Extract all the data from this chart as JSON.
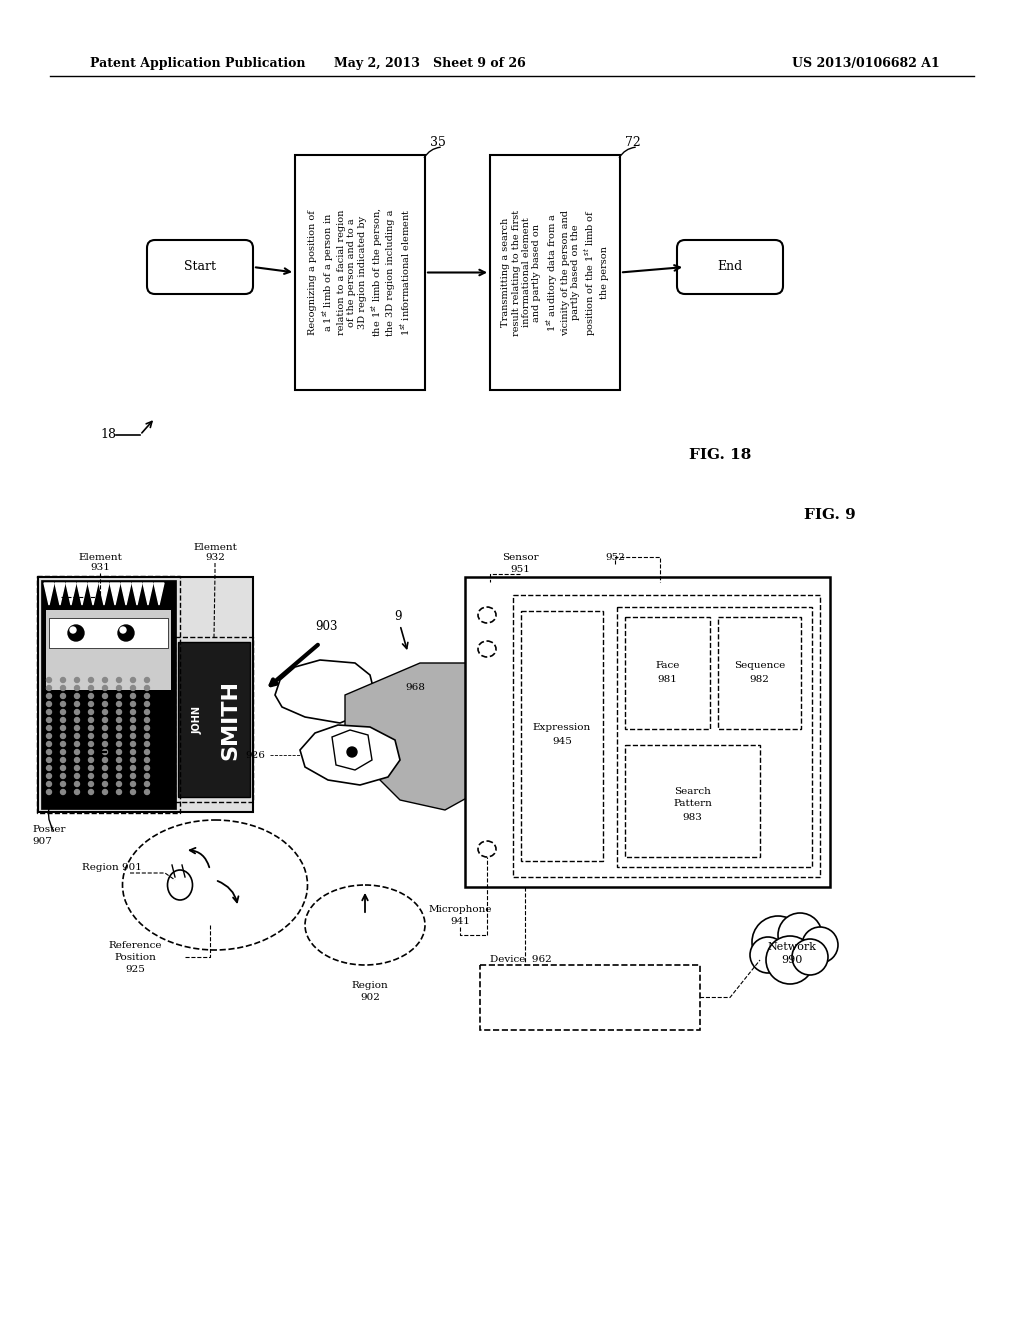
{
  "header_left": "Patent Application Publication",
  "header_center": "May 2, 2013   Sheet 9 of 26",
  "header_right": "US 2013/0106682 A1",
  "fig18_label": "FIG. 18",
  "fig9_label": "FIG. 9",
  "background_color": "#ffffff"
}
